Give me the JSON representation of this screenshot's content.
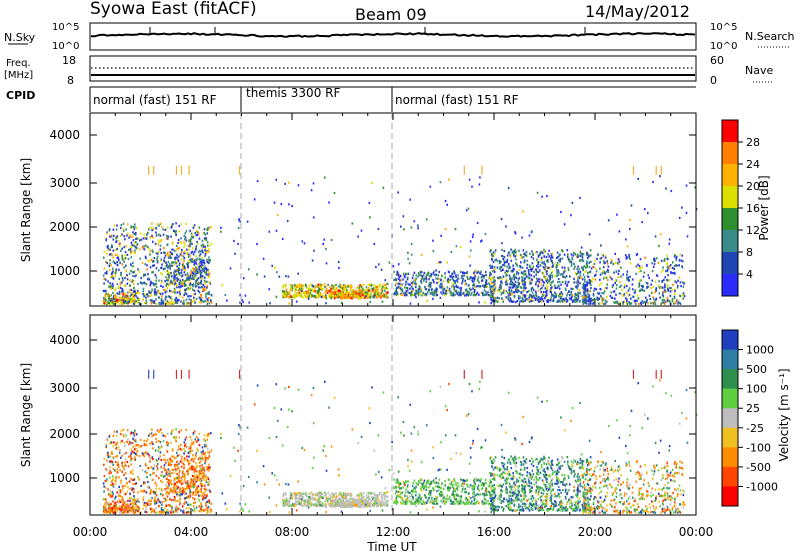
{
  "header": {
    "station": "Syowa East (fitACF)",
    "beam": "Beam 09",
    "date": "14/May/2012"
  },
  "panels": {
    "noise": {
      "left_label": "N.Sky",
      "left_ticks": [
        "10^5",
        "10^0"
      ],
      "right_label": "N.Search",
      "right_ticks": [
        "10^5",
        "10^0"
      ]
    },
    "frequency": {
      "left_label_line1": "Freq.",
      "left_label_line2": "[MHz]",
      "left_ticks": [
        "18",
        "8"
      ],
      "right_label": "Nave",
      "right_ticks": [
        "60",
        "0"
      ]
    },
    "cpid": {
      "label": "CPID",
      "segments": [
        {
          "start": 0,
          "end": 6,
          "label": "normal (fast) 151 RF"
        },
        {
          "start": 6,
          "end": 12,
          "label": "themis 3300 RF"
        },
        {
          "start": 12,
          "end": 24,
          "label": "normal (fast) 151 RF"
        }
      ]
    }
  },
  "chart_data": [
    {
      "type": "heatmap",
      "title": "",
      "xlabel": "",
      "ylabel": "Slant Range [km]",
      "x_range_hours": [
        0,
        24
      ],
      "ylim": [
        180,
        4600
      ],
      "yticks": [
        "4000",
        "3000",
        "2000",
        "1000"
      ],
      "colorbar": {
        "label": "Power [dB]",
        "ticks": [
          "28",
          "24",
          "20",
          "16",
          "12",
          "8",
          "4"
        ],
        "colors": [
          "#ff0000",
          "#ff7f00",
          "#ffb300",
          "#dbe000",
          "#2f8f2f",
          "#3a8a8a",
          "#1f45b5",
          "#2b2bff"
        ]
      }
    },
    {
      "type": "heatmap",
      "title": "",
      "xlabel": "Time UT",
      "ylabel": "Slant Range [km]",
      "x_range_hours": [
        0,
        24
      ],
      "xticks": [
        "00:00",
        "04:00",
        "08:00",
        "12:00",
        "16:00",
        "20:00",
        "00:00"
      ],
      "ylim": [
        180,
        4600
      ],
      "yticks": [
        "4000",
        "3000",
        "2000",
        "1000"
      ],
      "colorbar": {
        "label": "Velocity [m s⁻¹]",
        "ticks": [
          "1000",
          "500",
          "100",
          "25",
          "-25",
          "-100",
          "-500",
          "-1000"
        ],
        "colors": [
          "#1f3fbf",
          "#2e7fa3",
          "#2f8f4f",
          "#5fcf3f",
          "#bdbdbd",
          "#f0c020",
          "#ff8c00",
          "#ff4500",
          "#ff0000"
        ]
      }
    }
  ],
  "scatter_regions": [
    {
      "t0": 0.5,
      "t1": 4.8,
      "r0": 250,
      "r1": 2100,
      "n": 900,
      "p": [
        0.15,
        0.25,
        0.2,
        0.1,
        0.15,
        0.1,
        0.05,
        0.0
      ],
      "v": [
        0.1,
        0.05,
        0.05,
        0.05,
        0.05,
        0.15,
        0.35,
        0.15,
        0.05
      ]
    },
    {
      "t0": 0.5,
      "t1": 1.8,
      "r0": 250,
      "r1": 500,
      "n": 120,
      "p": [
        0.0,
        0.05,
        0.1,
        0.2,
        0.3,
        0.2,
        0.1,
        0.05
      ],
      "v": [
        0.0,
        0.0,
        0.0,
        0.05,
        0.1,
        0.2,
        0.3,
        0.25,
        0.1
      ]
    },
    {
      "t0": 3.0,
      "t1": 4.6,
      "r0": 700,
      "r1": 1500,
      "n": 200,
      "p": [
        0.15,
        0.3,
        0.25,
        0.1,
        0.1,
        0.05,
        0.05,
        0.0
      ],
      "v": [
        0.0,
        0.0,
        0.0,
        0.0,
        0.05,
        0.2,
        0.4,
        0.3,
        0.05
      ]
    },
    {
      "t0": 7.6,
      "t1": 11.8,
      "r0": 400,
      "r1": 700,
      "n": 500,
      "p": [
        0.0,
        0.0,
        0.05,
        0.2,
        0.35,
        0.25,
        0.1,
        0.05
      ],
      "v": [
        0.0,
        0.0,
        0.05,
        0.15,
        0.6,
        0.15,
        0.05,
        0.0,
        0.0
      ]
    },
    {
      "t0": 9.3,
      "t1": 11.0,
      "r0": 380,
      "r1": 560,
      "n": 150,
      "p": [
        0.0,
        0.0,
        0.0,
        0.1,
        0.2,
        0.3,
        0.2,
        0.2
      ],
      "v": [
        0.0,
        0.0,
        0.0,
        0.1,
        0.7,
        0.1,
        0.1,
        0.0,
        0.0
      ]
    },
    {
      "t0": 12.0,
      "t1": 16.0,
      "r0": 450,
      "r1": 1000,
      "n": 450,
      "p": [
        0.15,
        0.25,
        0.3,
        0.2,
        0.05,
        0.05,
        0.0,
        0.0
      ],
      "v": [
        0.0,
        0.1,
        0.3,
        0.5,
        0.05,
        0.05,
        0.0,
        0.0,
        0.0
      ]
    },
    {
      "t0": 15.8,
      "t1": 19.8,
      "r0": 300,
      "r1": 1500,
      "n": 800,
      "p": [
        0.2,
        0.25,
        0.3,
        0.15,
        0.05,
        0.05,
        0.0,
        0.0
      ],
      "v": [
        0.15,
        0.2,
        0.3,
        0.25,
        0.05,
        0.05,
        0.0,
        0.0,
        0.0
      ]
    },
    {
      "t0": 19.5,
      "t1": 23.5,
      "r0": 250,
      "r1": 1400,
      "n": 450,
      "p": [
        0.25,
        0.2,
        0.2,
        0.15,
        0.1,
        0.05,
        0.05,
        0.0
      ],
      "v": [
        0.05,
        0.05,
        0.1,
        0.15,
        0.1,
        0.2,
        0.25,
        0.1,
        0.0
      ]
    },
    {
      "t0": 5.0,
      "t1": 24.0,
      "r0": 250,
      "r1": 3200,
      "n": 300,
      "p": [
        0.5,
        0.2,
        0.1,
        0.1,
        0.05,
        0.05,
        0.0,
        0.0
      ],
      "v": [
        0.2,
        0.1,
        0.15,
        0.2,
        0.1,
        0.1,
        0.1,
        0.05,
        0.0
      ]
    }
  ],
  "far_range_ticks": [
    2.3,
    2.5,
    3.4,
    3.6,
    3.9,
    5.9,
    14.8,
    15.5,
    21.5,
    22.4,
    22.6
  ]
}
